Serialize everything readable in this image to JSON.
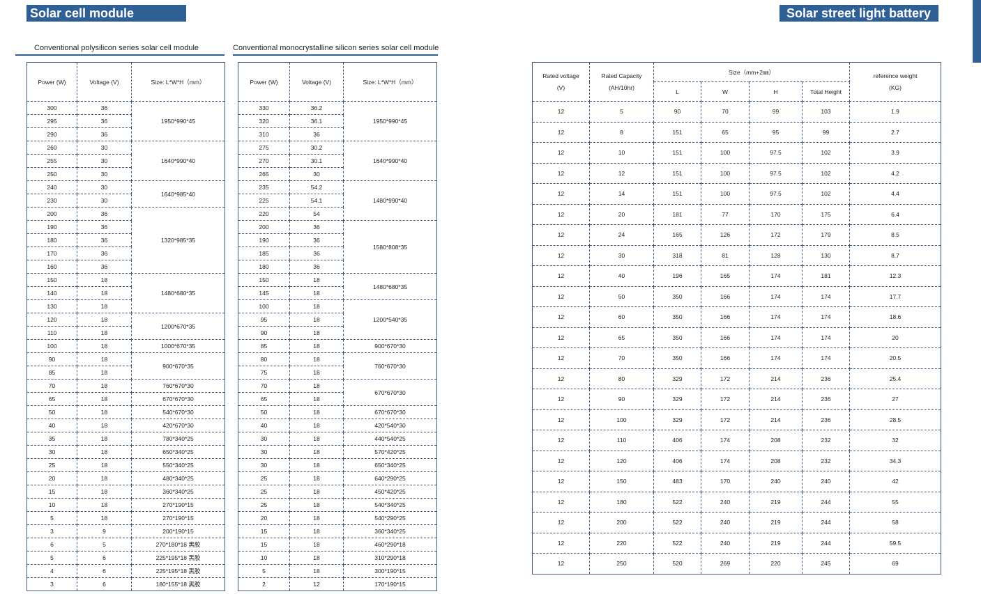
{
  "header": {
    "left_title": "Solar cell module",
    "right_title": "Solar street light battery"
  },
  "poly_table": {
    "title": "Conventional polysilicon series solar cell module",
    "headers": [
      "Power (W)",
      "Voltage (V)",
      "Size: L*W*H（mm）"
    ],
    "rows": [
      [
        "300",
        "36",
        "1950*990*45"
      ],
      [
        "295",
        "36",
        null
      ],
      [
        "290",
        "36",
        null
      ],
      [
        "260",
        "30",
        "1640*990*40"
      ],
      [
        "255",
        "30",
        null
      ],
      [
        "250",
        "30",
        null
      ],
      [
        "240",
        "30",
        "1640*985*40"
      ],
      [
        "230",
        "30",
        null
      ],
      [
        "200",
        "36",
        "1320*985*35"
      ],
      [
        "190",
        "36",
        null
      ],
      [
        "180",
        "36",
        null
      ],
      [
        "170",
        "36",
        null
      ],
      [
        "160",
        "36",
        null
      ],
      [
        "150",
        "18",
        "1480*680*35"
      ],
      [
        "140",
        "18",
        null
      ],
      [
        "130",
        "18",
        null
      ],
      [
        "120",
        "18",
        "1200*670*35"
      ],
      [
        "110",
        "18",
        null
      ],
      [
        "100",
        "18",
        "1000*670*35"
      ],
      [
        "90",
        "18",
        "900*670*35"
      ],
      [
        "85",
        "18",
        null
      ],
      [
        "70",
        "18",
        "760*670*30"
      ],
      [
        "65",
        "18",
        "670*670*30"
      ],
      [
        "50",
        "18",
        "540*670*30"
      ],
      [
        "40",
        "18",
        "420*670*30"
      ],
      [
        "35",
        "18",
        "780*340*25"
      ],
      [
        "30",
        "18",
        "650*340*25"
      ],
      [
        "25",
        "18",
        "550*340*25"
      ],
      [
        "20",
        "18",
        "480*340*25"
      ],
      [
        "15",
        "18",
        "360*340*25"
      ],
      [
        "10",
        "18",
        "270*190*15"
      ],
      [
        "5",
        "18",
        "270*190*15"
      ],
      [
        "3",
        "9",
        "200*190*15"
      ],
      [
        "6",
        "5",
        "270*180*18 黑胶"
      ],
      [
        "5",
        "6",
        "225*195*18 黑胶"
      ],
      [
        "4",
        "6",
        "225*195*18 黑胶"
      ],
      [
        "3",
        "6",
        "180*155*18 黑胶"
      ]
    ]
  },
  "mono_table": {
    "title": "Conventional monocrystalline silicon series solar cell module",
    "headers": [
      "Power (W)",
      "Voltage (V)",
      "Size: L*W*H（mm）"
    ],
    "rows": [
      [
        "330",
        "36.2",
        "1950*990*45"
      ],
      [
        "320",
        "36.1",
        null
      ],
      [
        "310",
        "36",
        null
      ],
      [
        "275",
        "30.2",
        "1640*990*40"
      ],
      [
        "270",
        "30.1",
        null
      ],
      [
        "265",
        "30",
        null
      ],
      [
        "235",
        "54.2",
        "1480*990*40"
      ],
      [
        "225",
        "54.1",
        null
      ],
      [
        "220",
        "54",
        null
      ],
      [
        "200",
        "36",
        "1580*808*35"
      ],
      [
        "190",
        "36",
        null
      ],
      [
        "185",
        "36",
        null
      ],
      [
        "180",
        "36",
        null
      ],
      [
        "150",
        "18",
        "1480*680*35"
      ],
      [
        "145",
        "18",
        null
      ],
      [
        "100",
        "18",
        "1200*540*35"
      ],
      [
        "95",
        "18",
        null
      ],
      [
        "90",
        "18",
        null
      ],
      [
        "85",
        "18",
        "900*670*30"
      ],
      [
        "80",
        "18",
        "760*670*30"
      ],
      [
        "75",
        "18",
        null
      ],
      [
        "70",
        "18",
        "670*670*30"
      ],
      [
        "65",
        "18",
        null
      ],
      [
        "50",
        "18",
        "670*670*30"
      ],
      [
        "40",
        "18",
        "420*540*30"
      ],
      [
        "30",
        "18",
        "440*540*25"
      ],
      [
        "30",
        "18",
        "570*420*25"
      ],
      [
        "30",
        "18",
        "650*340*25"
      ],
      [
        "25",
        "18",
        "640*290*25"
      ],
      [
        "25",
        "18",
        "450*420*25"
      ],
      [
        "25",
        "18",
        "540*340*25"
      ],
      [
        "20",
        "18",
        "540*290*25"
      ],
      [
        "15",
        "18",
        "360*340*25"
      ],
      [
        "15",
        "18",
        "460*290*18"
      ],
      [
        "10",
        "18",
        "310*290*18"
      ],
      [
        "5",
        "18",
        "300*190*15"
      ],
      [
        "2",
        "12",
        "170*190*15"
      ]
    ]
  },
  "battery_table": {
    "headers": {
      "voltage": [
        "Rated voltage",
        "(V)"
      ],
      "capacity": [
        "Rated Capacity",
        "(AH/10hr)"
      ],
      "size": "Size（mm+2㎜）",
      "dims": [
        "L",
        "W",
        "H",
        "Total Height"
      ],
      "weight": [
        "reference weight",
        "(KG)"
      ]
    },
    "rows": [
      [
        "12",
        "5",
        "90",
        "70",
        "99",
        "103",
        "1.9"
      ],
      [
        "12",
        "8",
        "151",
        "65",
        "95",
        "99",
        "2.7"
      ],
      [
        "12",
        "10",
        "151",
        "100",
        "97.5",
        "102",
        "3.9"
      ],
      [
        "12",
        "12",
        "151",
        "100",
        "97.5",
        "102",
        "4.2"
      ],
      [
        "12",
        "14",
        "151",
        "100",
        "97.5",
        "102",
        "4.4"
      ],
      [
        "12",
        "20",
        "181",
        "77",
        "170",
        "175",
        "6.4"
      ],
      [
        "12",
        "24",
        "165",
        "126",
        "172",
        "179",
        "8.5"
      ],
      [
        "12",
        "30",
        "318",
        "81",
        "128",
        "130",
        "8.7"
      ],
      [
        "12",
        "40",
        "196",
        "165",
        "174",
        "181",
        "12.3"
      ],
      [
        "12",
        "50",
        "350",
        "166",
        "174",
        "174",
        "17.7"
      ],
      [
        "12",
        "60",
        "350",
        "166",
        "174",
        "174",
        "18.6"
      ],
      [
        "12",
        "65",
        "350",
        "166",
        "174",
        "174",
        "20"
      ],
      [
        "12",
        "70",
        "350",
        "166",
        "174",
        "174",
        "20.5"
      ],
      [
        "12",
        "80",
        "329",
        "172",
        "214",
        "236",
        "25.4"
      ],
      [
        "12",
        "90",
        "329",
        "172",
        "214",
        "236",
        "27"
      ],
      [
        "12",
        "100",
        "329",
        "172",
        "214",
        "236",
        "28.5"
      ],
      [
        "12",
        "110",
        "406",
        "174",
        "208",
        "232",
        "32"
      ],
      [
        "12",
        "120",
        "406",
        "174",
        "208",
        "232",
        "34.3"
      ],
      [
        "12",
        "150",
        "483",
        "170",
        "240",
        "240",
        "42"
      ],
      [
        "12",
        "180",
        "522",
        "240",
        "219",
        "244",
        "55"
      ],
      [
        "12",
        "200",
        "522",
        "240",
        "219",
        "244",
        "58"
      ],
      [
        "12",
        "220",
        "522",
        "240",
        "219",
        "244",
        "59.5"
      ],
      [
        "12",
        "250",
        "520",
        "269",
        "220",
        "245",
        "69"
      ]
    ]
  }
}
